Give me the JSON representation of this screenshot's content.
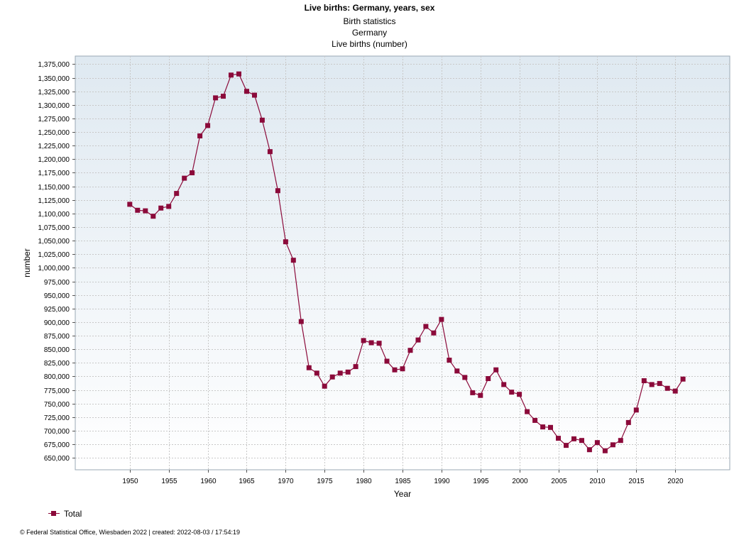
{
  "header": {
    "title": "Live births: Germany, years, sex",
    "subtitles": [
      "Birth statistics",
      "Germany",
      "Live births (number)"
    ]
  },
  "footer": {
    "text": "© Federal Statistical Office, Wiesbaden 2022 | created: 2022-08-03 / 17:54:19"
  },
  "legend": {
    "label": "Total"
  },
  "colors": {
    "series": "#8b0a3a",
    "plot_top": "#dfe9f1",
    "plot_bottom": "#ffffff",
    "grid": "#c8c8c8"
  },
  "chart_data": {
    "type": "line",
    "title": "Live births: Germany, years, sex",
    "xlabel": "Year",
    "ylabel": "number",
    "xlim": [
      1943,
      2027
    ],
    "ylim": [
      628000,
      1390000
    ],
    "xticks": [
      1950,
      1955,
      1960,
      1965,
      1970,
      1975,
      1980,
      1985,
      1990,
      1995,
      2000,
      2005,
      2010,
      2015,
      2020
    ],
    "yticks": [
      650000,
      675000,
      700000,
      725000,
      750000,
      775000,
      800000,
      825000,
      850000,
      875000,
      900000,
      925000,
      950000,
      975000,
      1000000,
      1025000,
      1050000,
      1075000,
      1100000,
      1125000,
      1150000,
      1175000,
      1200000,
      1225000,
      1250000,
      1275000,
      1300000,
      1325000,
      1350000,
      1375000
    ],
    "grid": true,
    "legend_position": "bottom-left",
    "series": [
      {
        "name": "Total",
        "x": [
          1950,
          1951,
          1952,
          1953,
          1954,
          1955,
          1956,
          1957,
          1958,
          1959,
          1960,
          1961,
          1962,
          1963,
          1964,
          1965,
          1966,
          1967,
          1968,
          1969,
          1970,
          1971,
          1972,
          1973,
          1974,
          1975,
          1976,
          1977,
          1978,
          1979,
          1980,
          1981,
          1982,
          1983,
          1984,
          1985,
          1986,
          1987,
          1988,
          1989,
          1990,
          1991,
          1992,
          1993,
          1994,
          1995,
          1996,
          1997,
          1998,
          1999,
          2000,
          2001,
          2002,
          2003,
          2004,
          2005,
          2006,
          2007,
          2008,
          2009,
          2010,
          2011,
          2012,
          2013,
          2014,
          2015,
          2016,
          2017,
          2018,
          2019,
          2020,
          2021
        ],
        "values": [
          1117000,
          1106000,
          1105000,
          1095000,
          1110000,
          1113000,
          1137000,
          1165000,
          1175000,
          1243000,
          1262000,
          1313000,
          1316000,
          1355000,
          1357000,
          1325000,
          1318000,
          1272000,
          1214000,
          1142000,
          1048000,
          1014000,
          901000,
          816000,
          806000,
          782000,
          799000,
          806000,
          808000,
          818000,
          866000,
          862000,
          861000,
          828000,
          812000,
          814000,
          848000,
          867000,
          892000,
          880000,
          905000,
          830000,
          810000,
          798000,
          770000,
          765000,
          796000,
          812000,
          785000,
          771000,
          767000,
          735000,
          719000,
          707000,
          706000,
          686000,
          673000,
          685000,
          682000,
          665000,
          678000,
          663000,
          674000,
          682000,
          715000,
          738000,
          792000,
          785000,
          787000,
          778000,
          773000,
          795000
        ]
      }
    ]
  }
}
